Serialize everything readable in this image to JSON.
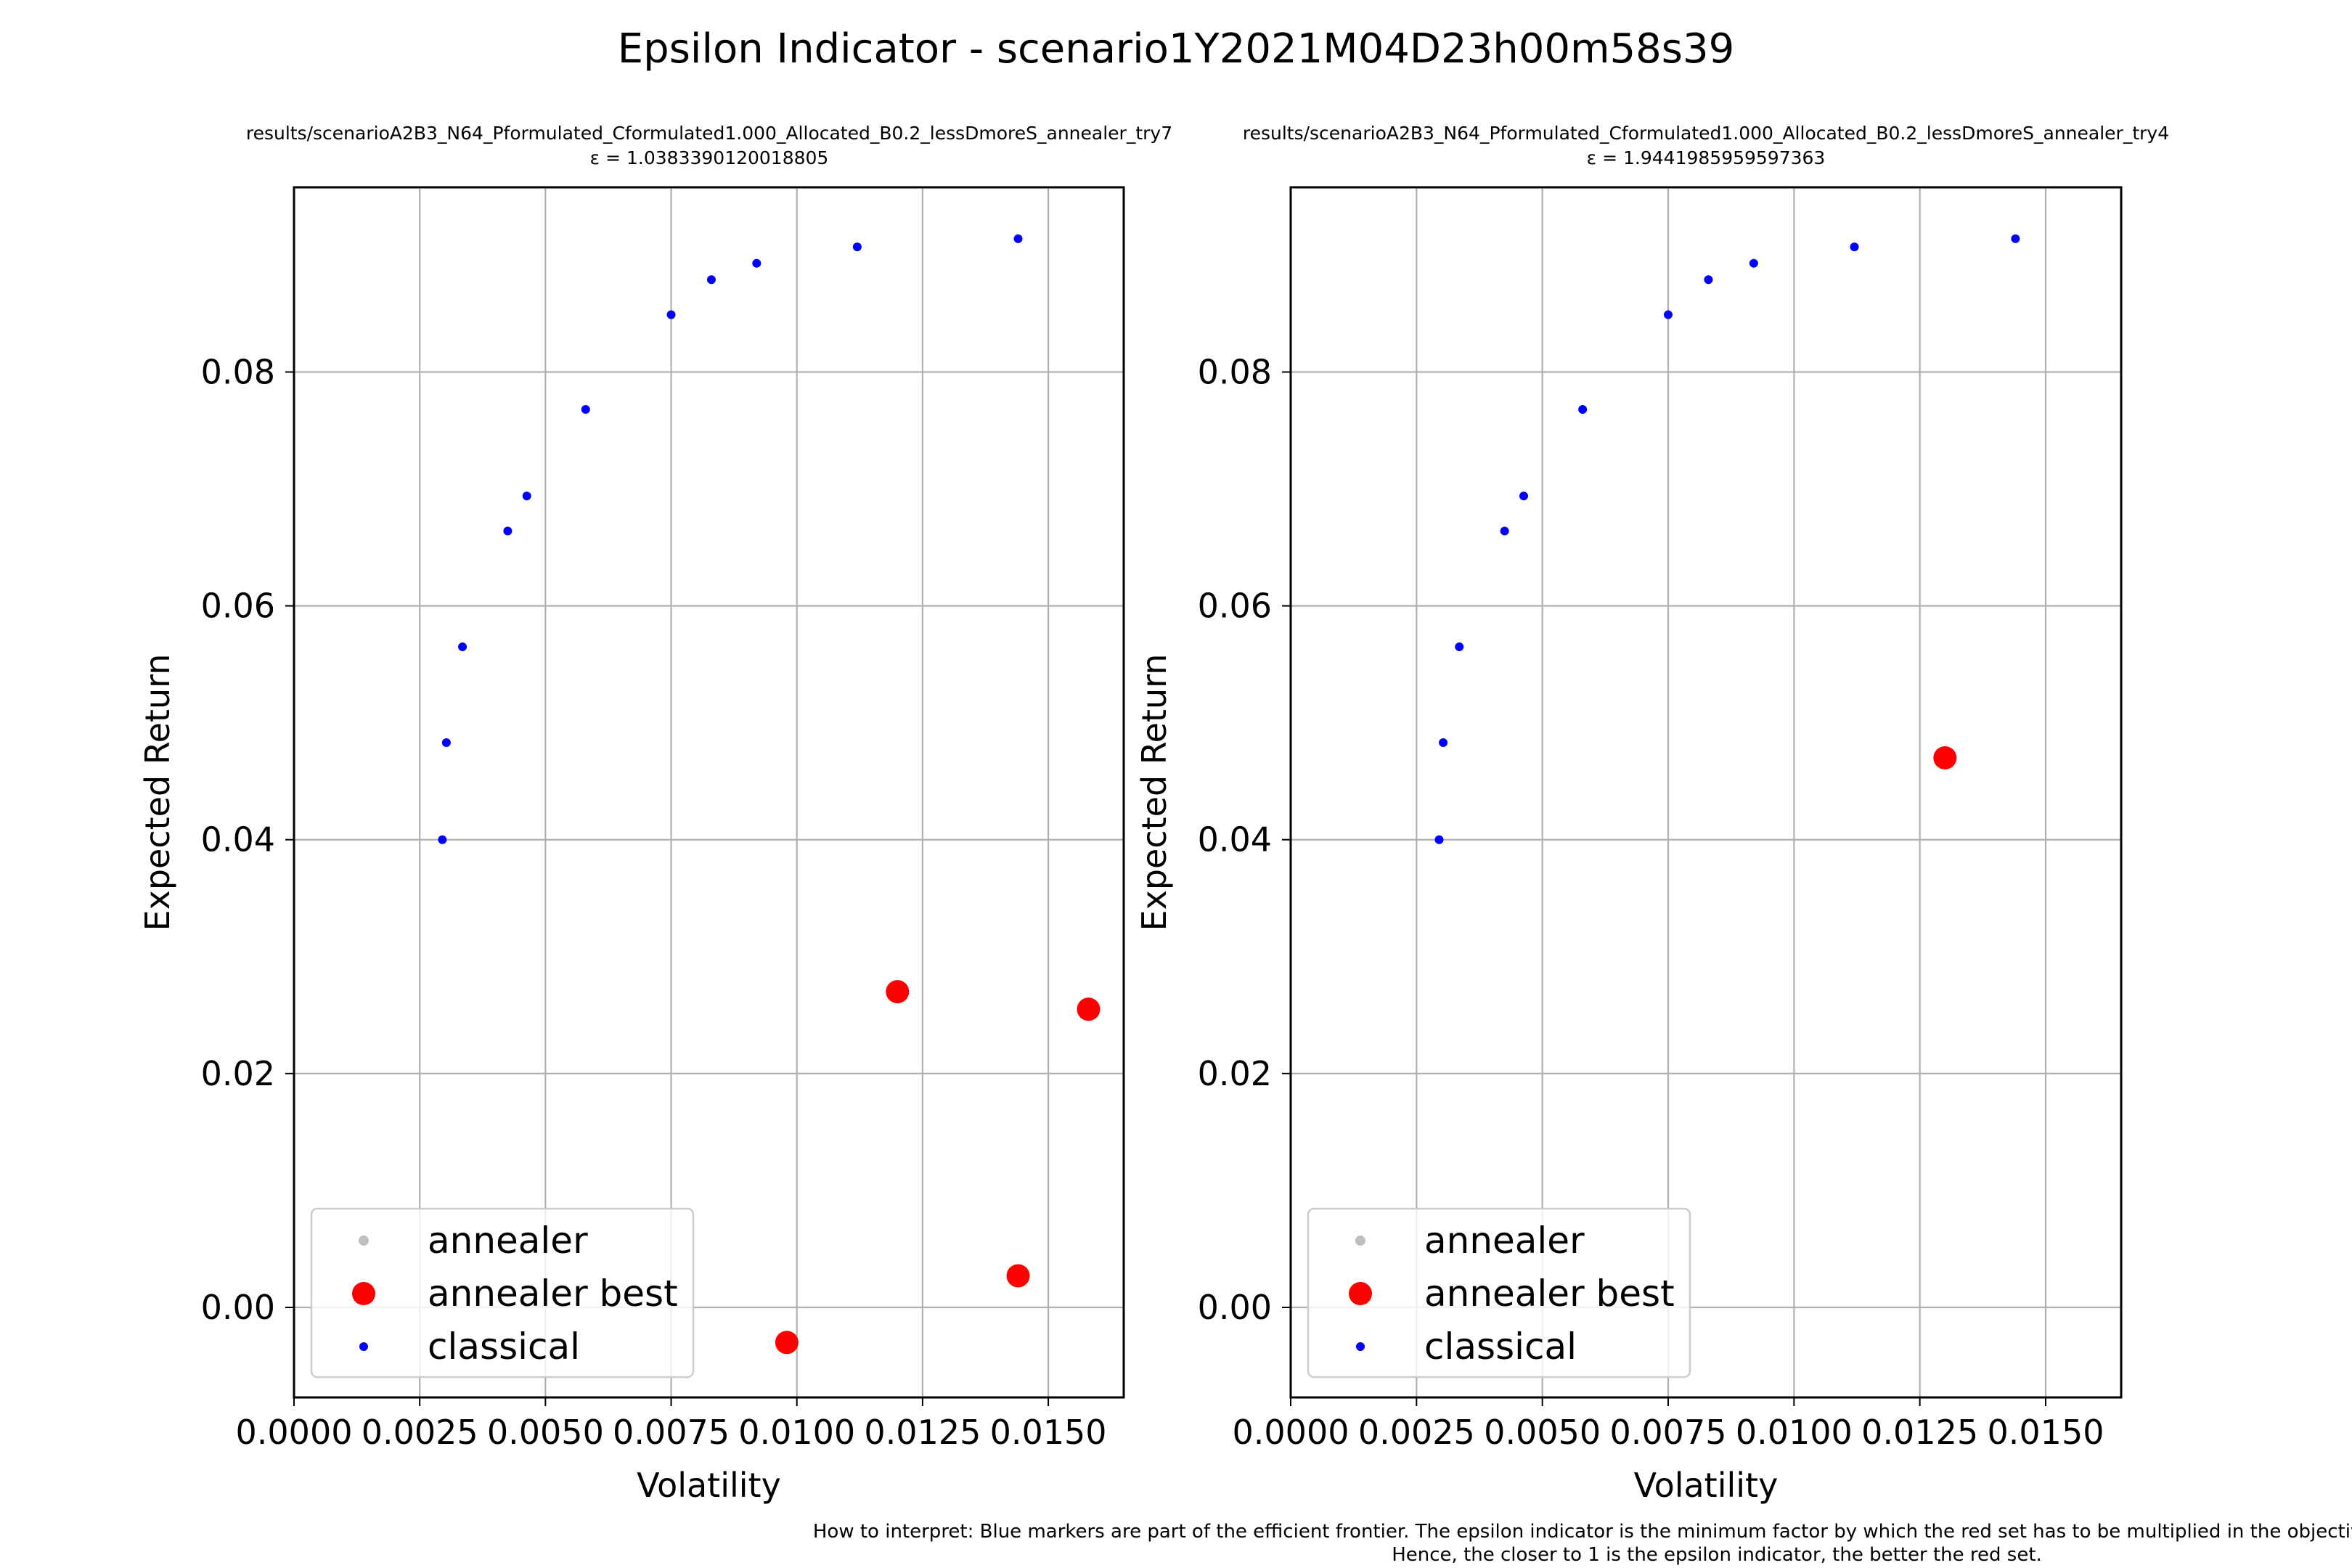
{
  "figure": {
    "title": "Epsilon Indicator - scenario1Y2021M04D23h00m58s39",
    "footnote": [
      "How to interpret: Blue markers are part of the efficient frontier. The epsilon indicator is the minimum factor by which the red set has to be multiplied in the objective so as to weakly dominate",
      "Hence, the closer to 1 is the epsilon indicator, the better the red set."
    ]
  },
  "colors": {
    "annealer": "#bfbfbf",
    "annealer_best": "#ff0000",
    "classical": "#0000ff",
    "grid": "#b0b0b0"
  },
  "chart_data": [
    {
      "type": "scatter",
      "title": "results/scenarioA2B3_N64_Pformulated_Cformulated1.000_Allocated_B0.2_lessDmoreS_annealer_try7",
      "subtitle": "ε = 1.0383390120018805",
      "xlabel": "Volatility",
      "ylabel": "Expected Return",
      "xlim": [
        0.0,
        0.0165
      ],
      "ylim": [
        -0.0077,
        0.0958
      ],
      "xticks": [
        "0.0000",
        "0.0025",
        "0.0050",
        "0.0075",
        "0.0100",
        "0.0125",
        "0.0150"
      ],
      "xtick_values": [
        0.0,
        0.0025,
        0.005,
        0.0075,
        0.01,
        0.0125,
        0.015
      ],
      "yticks": [
        "0.00",
        "0.02",
        "0.04",
        "0.06",
        "0.08"
      ],
      "ytick_values": [
        0.0,
        0.02,
        0.04,
        0.06,
        0.08
      ],
      "grid": true,
      "legend": {
        "position": "lower-left",
        "entries": [
          "annealer",
          "annealer best",
          "classical"
        ]
      },
      "series": [
        {
          "name": "annealer",
          "x": [],
          "y": []
        },
        {
          "name": "annealer best",
          "x": [
            0.0098,
            0.012,
            0.0144,
            0.0158
          ],
          "y": [
            -0.003,
            0.027,
            0.0027,
            0.0255
          ]
        },
        {
          "name": "classical",
          "x": [
            0.00295,
            0.00303,
            0.00335,
            0.00425,
            0.00463,
            0.0058,
            0.0075,
            0.0083,
            0.0092,
            0.0112,
            0.0144
          ],
          "y": [
            0.04,
            0.0483,
            0.0565,
            0.0664,
            0.0694,
            0.0768,
            0.0849,
            0.0879,
            0.0893,
            0.0907,
            0.0914
          ]
        }
      ]
    },
    {
      "type": "scatter",
      "title": "results/scenarioA2B3_N64_Pformulated_Cformulated1.000_Allocated_B0.2_lessDmoreS_annealer_try4",
      "subtitle": "ε = 1.9441985959597363",
      "xlabel": "Volatility",
      "ylabel": "Expected Return",
      "xlim": [
        0.0,
        0.0165
      ],
      "ylim": [
        -0.0077,
        0.0958
      ],
      "xticks": [
        "0.0000",
        "0.0025",
        "0.0050",
        "0.0075",
        "0.0100",
        "0.0125",
        "0.0150"
      ],
      "xtick_values": [
        0.0,
        0.0025,
        0.005,
        0.0075,
        0.01,
        0.0125,
        0.015
      ],
      "yticks": [
        "0.00",
        "0.02",
        "0.04",
        "0.06",
        "0.08"
      ],
      "ytick_values": [
        0.0,
        0.02,
        0.04,
        0.06,
        0.08
      ],
      "grid": true,
      "legend": {
        "position": "lower-left",
        "entries": [
          "annealer",
          "annealer best",
          "classical"
        ]
      },
      "series": [
        {
          "name": "annealer",
          "x": [],
          "y": []
        },
        {
          "name": "annealer best",
          "x": [
            0.013
          ],
          "y": [
            0.047
          ]
        },
        {
          "name": "classical",
          "x": [
            0.00295,
            0.00303,
            0.00335,
            0.00425,
            0.00463,
            0.0058,
            0.0075,
            0.0083,
            0.0092,
            0.0112,
            0.0144
          ],
          "y": [
            0.04,
            0.0483,
            0.0565,
            0.0664,
            0.0694,
            0.0768,
            0.0849,
            0.0879,
            0.0893,
            0.0907,
            0.0914
          ]
        }
      ]
    }
  ]
}
